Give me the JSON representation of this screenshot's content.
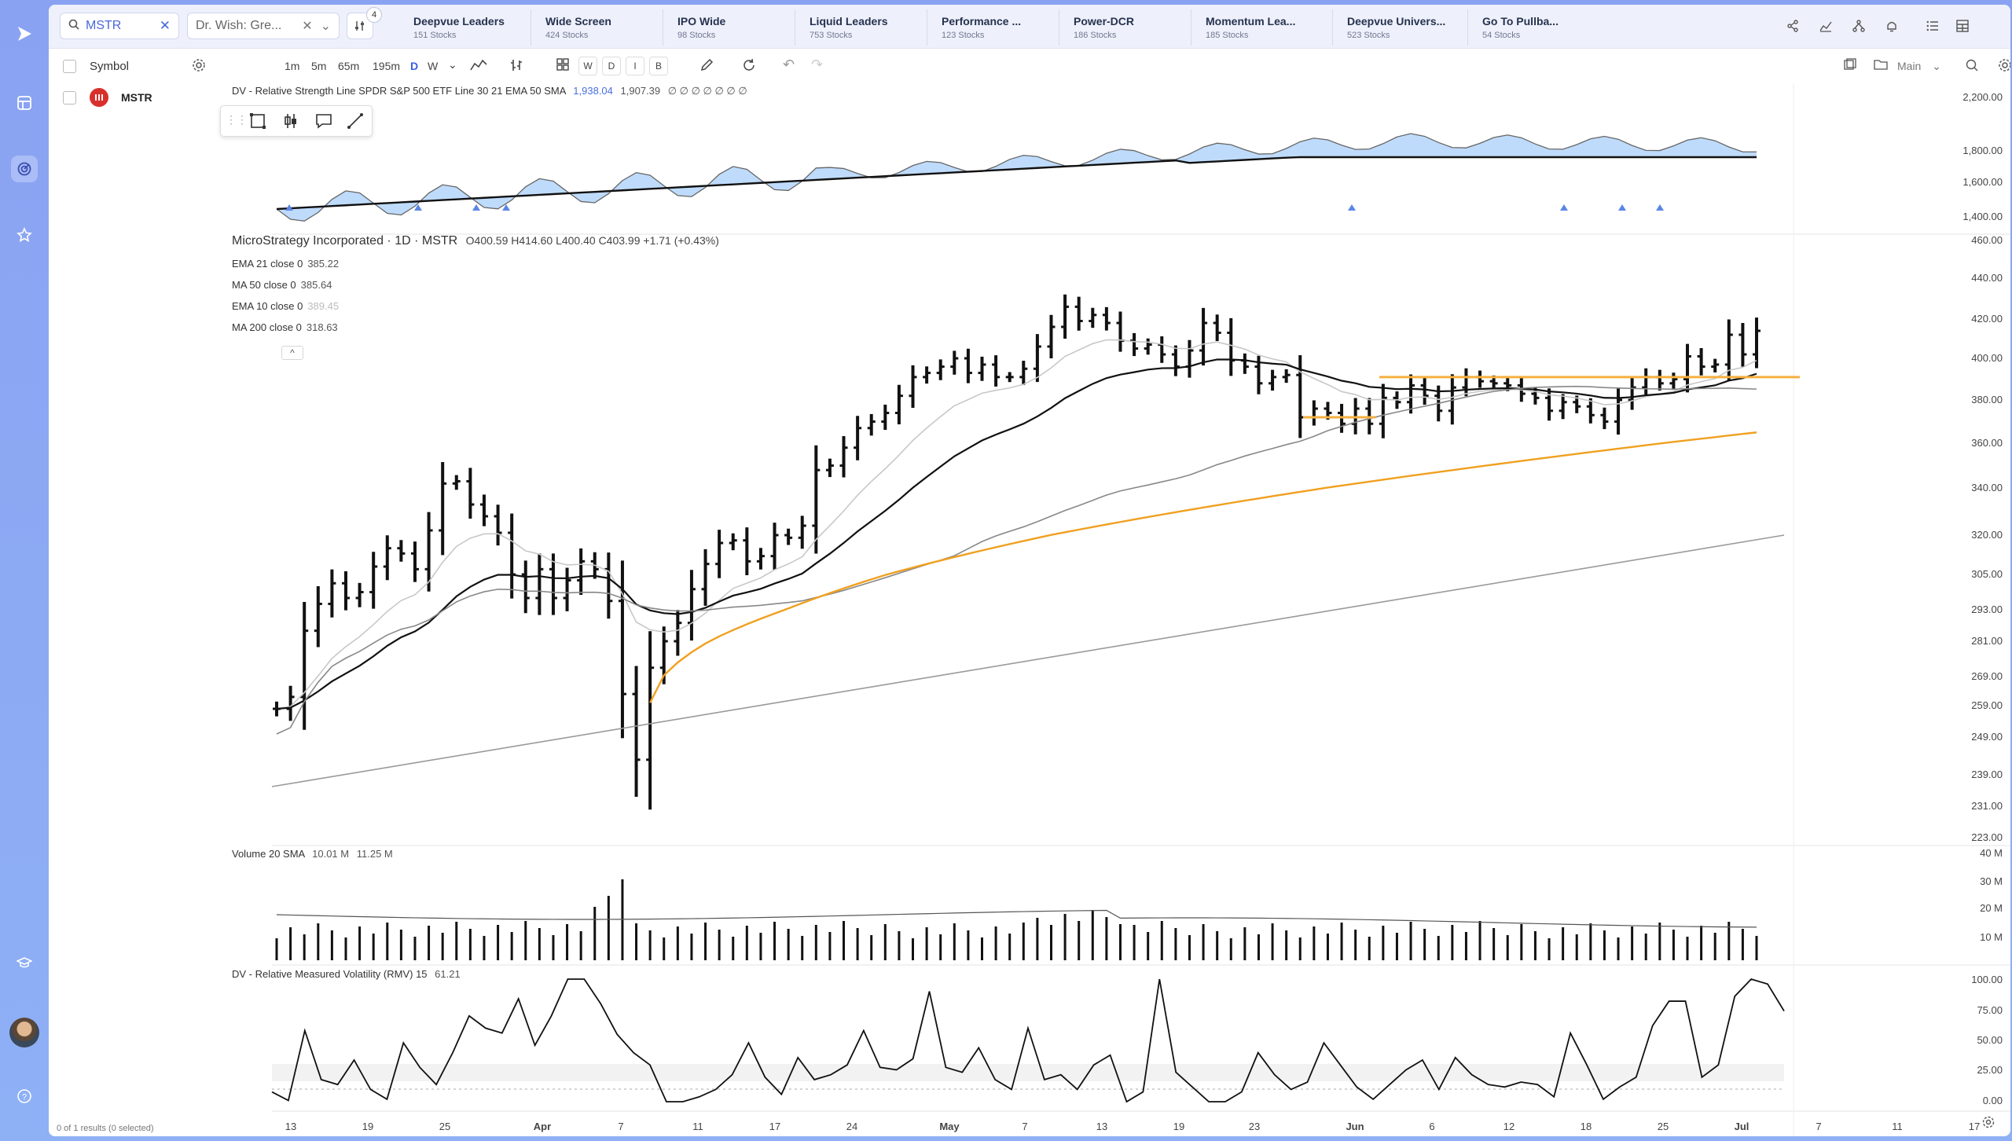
{
  "app": {
    "nav_icons": [
      "play-logo-icon",
      "layout-icon",
      "radar-icon",
      "star-icon",
      "graduation-cap-icon",
      "help-icon"
    ]
  },
  "search": {
    "value": "MSTR",
    "secondary": "Dr. Wish: Gre...",
    "filter_badge": "4"
  },
  "screens": [
    {
      "name": "Deepvue Leaders",
      "count": "151 Stocks"
    },
    {
      "name": "Wide Screen",
      "count": "424 Stocks"
    },
    {
      "name": "IPO Wide",
      "count": "98 Stocks"
    },
    {
      "name": "Liquid Leaders",
      "count": "753 Stocks"
    },
    {
      "name": "Performance ...",
      "count": "123 Stocks"
    },
    {
      "name": "Power-DCR",
      "count": "186 Stocks"
    },
    {
      "name": "Momentum Lea...",
      "count": "185 Stocks"
    },
    {
      "name": "Deepvue Univers...",
      "count": "523 Stocks"
    },
    {
      "name": "Go To Pullba...",
      "count": "54 Stocks"
    }
  ],
  "watchlist": {
    "column": "Symbol",
    "symbol": "MSTR",
    "footer": "0 of 1 results (0 selected)"
  },
  "toolbar": {
    "timeframes": [
      "1m",
      "5m",
      "65m",
      "195m",
      "D",
      "W"
    ],
    "letter_buttons": [
      "W",
      "D",
      "I",
      "B"
    ],
    "layout_label": "Main"
  },
  "chart": {
    "rs_legend": {
      "title": "DV - Relative Strength Line SPDR S&P 500 ETF Line 30 21 EMA 50 SMA",
      "v1": "1,938.04",
      "v2": "1,907.39",
      "rest": "∅ ∅ ∅ ∅ ∅ ∅ ∅"
    },
    "main_legend": {
      "title": "MicroStrategy Incorporated · 1D · MSTR",
      "ohlc": "O400.59  H414.60  L400.40  C403.99  +1.71 (+0.43%)"
    },
    "ma_legend": [
      {
        "label": "EMA 21 close 0",
        "value": "385.22"
      },
      {
        "label": "MA 50 close 0",
        "value": "385.64"
      },
      {
        "label": "EMA 10 close 0",
        "value": "389.45"
      },
      {
        "label": "MA 200 close 0",
        "value": "318.63"
      }
    ],
    "volume_legend": {
      "title": "Volume 20 SMA",
      "v1": "10.01 M",
      "v2": "11.25 M"
    },
    "rmv_legend": {
      "title": "DV - Relative Measured Volatility (RMV) 15",
      "value": "61.21"
    },
    "rs_axis": [
      "2,200.00",
      "1,800.00",
      "1,600.00",
      "1,400.00"
    ],
    "price_axis": [
      "460.00",
      "440.00",
      "420.00",
      "400.00",
      "380.00",
      "360.00",
      "340.00",
      "320.00",
      "305.00",
      "293.00",
      "281.00",
      "269.00",
      "259.00",
      "249.00",
      "239.00",
      "231.00",
      "223.00"
    ],
    "volume_axis": [
      "40 M",
      "30 M",
      "20 M",
      "10 M"
    ],
    "rmv_axis": [
      "100.00",
      "75.00",
      "50.00",
      "25.00",
      "0.00"
    ],
    "date_axis": [
      "13",
      "19",
      "25",
      "Apr",
      "7",
      "11",
      "17",
      "24",
      "May",
      "7",
      "13",
      "19",
      "23",
      "Jun",
      "6",
      "12",
      "18",
      "25",
      "Jul",
      "7",
      "11",
      "17"
    ]
  }
}
